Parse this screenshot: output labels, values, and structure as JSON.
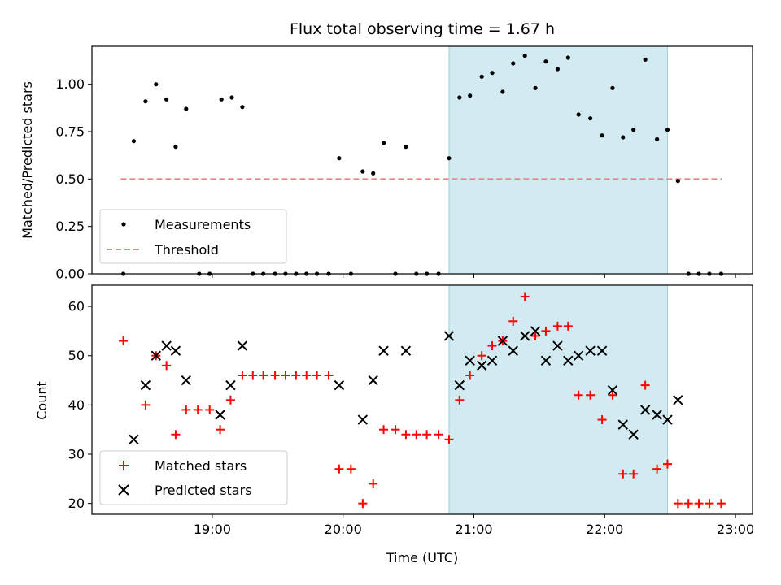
{
  "figure": {
    "title": "Flux total observing time = 1.67 h",
    "xlabel": "Time (UTC)",
    "x_ticks": [
      "19:00",
      "20:00",
      "21:00",
      "22:00",
      "23:00"
    ]
  },
  "colors": {
    "shade": "#add8e6",
    "threshold": "#f08080",
    "matched": "#ff0000",
    "predicted": "#000000",
    "measurement": "#000000"
  },
  "chart_data": [
    {
      "type": "scatter",
      "name": "top",
      "ylabel": "Matched/Predicted stars",
      "xlim": [
        18.08,
        23.13
      ],
      "ylim": [
        0,
        1.2
      ],
      "yticks": [
        0.0,
        0.25,
        0.5,
        0.75,
        1.0
      ],
      "ytick_labels": [
        "0.00",
        "0.25",
        "0.50",
        "0.75",
        "1.00"
      ],
      "shaded_region": [
        20.81,
        22.48
      ],
      "threshold": {
        "label": "Threshold",
        "value": 0.5,
        "x_range": [
          18.3,
          22.9
        ]
      },
      "legend": [
        "Measurements",
        "Threshold"
      ],
      "legend_loc": "lower-left",
      "measurements": {
        "name": "Measurements",
        "x": [
          18.32,
          18.4,
          18.49,
          18.57,
          18.65,
          18.72,
          18.8,
          18.9,
          18.98,
          19.07,
          19.15,
          19.23,
          19.31,
          19.39,
          19.48,
          19.56,
          19.64,
          19.72,
          19.8,
          19.89,
          19.97,
          20.06,
          20.15,
          20.23,
          20.31,
          20.4,
          20.48,
          20.56,
          20.64,
          20.73,
          20.81,
          20.89,
          20.97,
          21.06,
          21.14,
          21.22,
          21.3,
          21.39,
          21.47,
          21.55,
          21.64,
          21.72,
          21.8,
          21.89,
          21.98,
          22.06,
          22.14,
          22.22,
          22.31,
          22.4,
          22.48,
          22.56,
          22.64,
          22.72,
          22.8,
          22.89
        ],
        "y": [
          0.0,
          0.7,
          0.91,
          1.0,
          0.92,
          0.67,
          0.87,
          0.0,
          0.0,
          0.92,
          0.93,
          0.88,
          0.0,
          0.0,
          0.0,
          0.0,
          0.0,
          0.0,
          0.0,
          0.0,
          0.61,
          0.0,
          0.54,
          0.53,
          0.69,
          0.0,
          0.67,
          0.0,
          0.0,
          0.0,
          0.61,
          0.93,
          0.94,
          1.04,
          1.06,
          0.96,
          1.11,
          1.15,
          0.98,
          1.12,
          1.08,
          1.14,
          0.84,
          0.82,
          0.73,
          0.98,
          0.72,
          0.76,
          1.13,
          0.71,
          0.76,
          0.49,
          0.0,
          0.0,
          0.0,
          0.0
        ]
      }
    },
    {
      "type": "scatter",
      "name": "bottom",
      "ylabel": "Count",
      "xlim": [
        18.08,
        23.13
      ],
      "ylim": [
        17.8,
        64.3
      ],
      "yticks": [
        20,
        30,
        40,
        50,
        60
      ],
      "ytick_labels": [
        "20",
        "30",
        "40",
        "50",
        "60"
      ],
      "shaded_region": [
        20.81,
        22.48
      ],
      "legend": [
        "Matched stars",
        "Predicted stars"
      ],
      "legend_loc": "lower-left",
      "series": [
        {
          "name": "Matched stars",
          "marker": "+",
          "x": [
            18.32,
            18.49,
            18.57,
            18.65,
            18.72,
            18.8,
            18.89,
            18.98,
            19.06,
            19.14,
            19.23,
            19.31,
            19.39,
            19.48,
            19.56,
            19.64,
            19.72,
            19.8,
            19.89,
            19.97,
            20.06,
            20.15,
            20.23,
            20.31,
            20.4,
            20.48,
            20.56,
            20.64,
            20.73,
            20.81,
            20.89,
            20.97,
            21.06,
            21.14,
            21.22,
            21.3,
            21.39,
            21.47,
            21.55,
            21.64,
            21.72,
            21.8,
            21.89,
            21.98,
            22.06,
            22.14,
            22.22,
            22.31,
            22.4,
            22.48,
            22.56,
            22.64,
            22.72,
            22.8,
            22.89
          ],
          "y": [
            53,
            40,
            50,
            48,
            34,
            39,
            39,
            39,
            35,
            41,
            46,
            46,
            46,
            46,
            46,
            46,
            46,
            46,
            46,
            27,
            27,
            20,
            24,
            35,
            35,
            34,
            34,
            34,
            34,
            33,
            41,
            46,
            50,
            52,
            53,
            57,
            62,
            54,
            55,
            56,
            56,
            42,
            42,
            37,
            42,
            26,
            26,
            44,
            27,
            28,
            20,
            20,
            20,
            20,
            20
          ]
        },
        {
          "name": "Predicted stars",
          "marker": "x",
          "x": [
            18.4,
            18.49,
            18.57,
            18.65,
            18.72,
            18.8,
            19.06,
            19.14,
            19.23,
            19.97,
            20.15,
            20.23,
            20.31,
            20.48,
            20.81,
            20.89,
            20.97,
            21.06,
            21.14,
            21.22,
            21.3,
            21.39,
            21.47,
            21.55,
            21.64,
            21.72,
            21.8,
            21.89,
            21.98,
            22.06,
            22.14,
            22.22,
            22.31,
            22.4,
            22.48,
            22.56
          ],
          "y": [
            33,
            44,
            50,
            52,
            51,
            45,
            38,
            44,
            52,
            44,
            37,
            45,
            51,
            51,
            54,
            44,
            49,
            48,
            49,
            53,
            51,
            54,
            55,
            49,
            52,
            49,
            50,
            51,
            51,
            43,
            36,
            34,
            39,
            38,
            37,
            41
          ]
        }
      ]
    }
  ]
}
